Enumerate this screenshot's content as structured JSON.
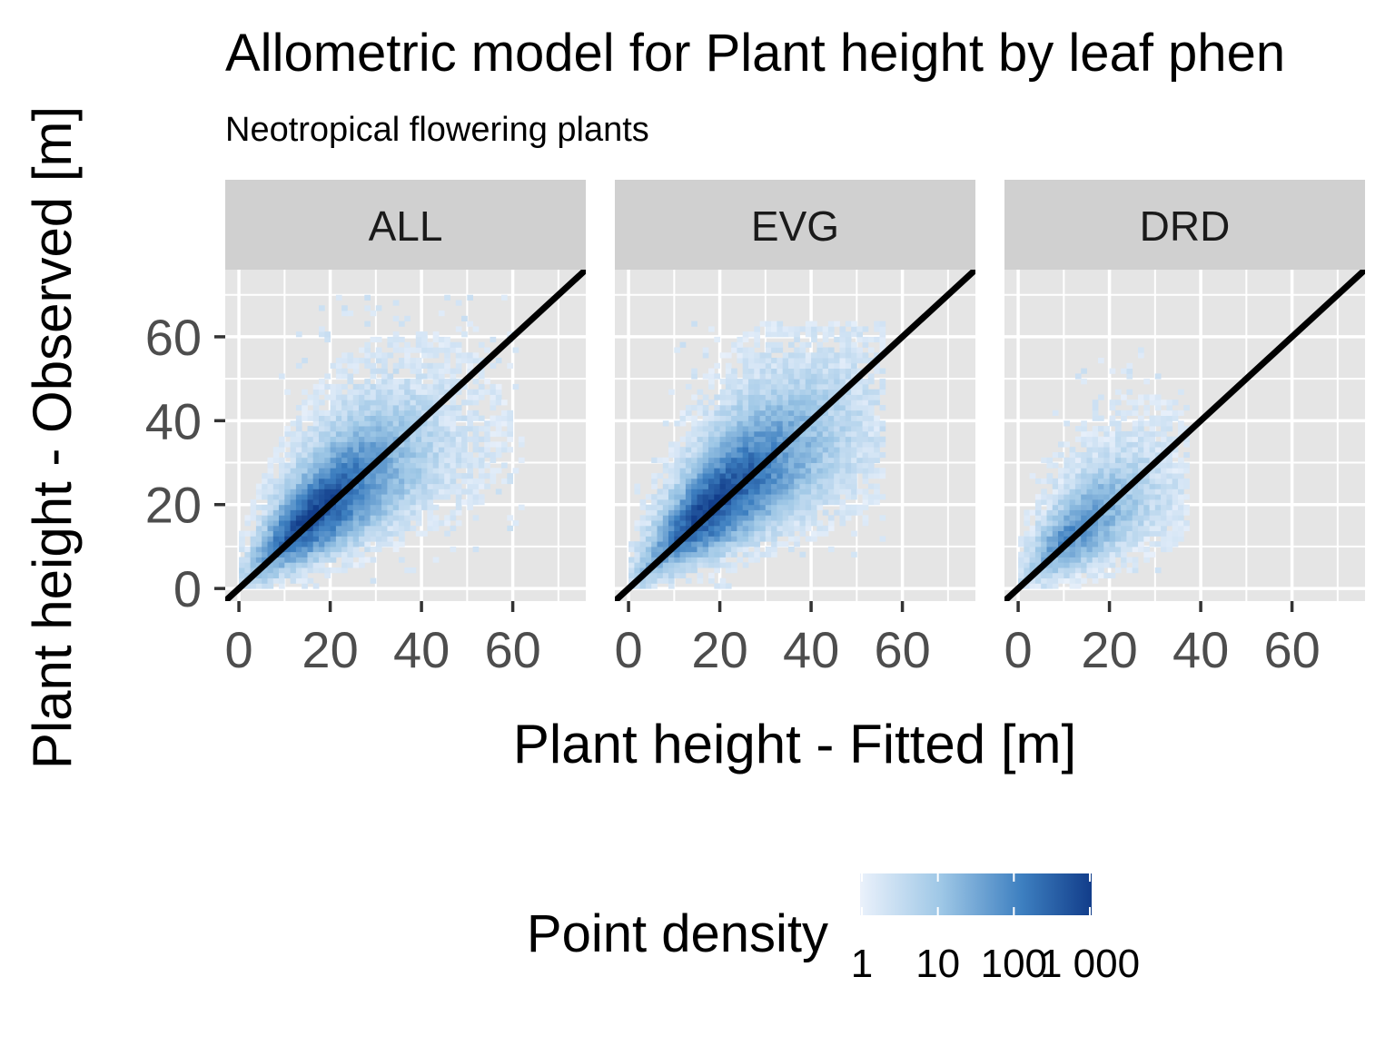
{
  "chart_data": {
    "type": "heatmap",
    "title": "Allometric model for Plant height by leaf phen",
    "subtitle": "Neotropical flowering plants",
    "xlabel": "Plant height - Fitted [m]",
    "ylabel": "Plant height - Observed [m]",
    "xlim": [
      -3,
      76
    ],
    "ylim": [
      -3,
      76
    ],
    "x_ticks": [
      0,
      20,
      40,
      60
    ],
    "y_ticks": [
      0,
      20,
      40,
      60
    ],
    "grid": true,
    "reference_line": {
      "type": "identity",
      "slope": 1,
      "intercept": 0,
      "color": "#000000"
    },
    "facets": [
      {
        "label": "ALL",
        "density_center": {
          "x": 16,
          "y": 16
        },
        "max_fitted": 62,
        "max_observed": 70,
        "peak_density": 1000
      },
      {
        "label": "EVG",
        "density_center": {
          "x": 18,
          "y": 18
        },
        "max_fitted": 56,
        "max_observed": 63,
        "peak_density": 1000
      },
      {
        "label": "DRD",
        "density_center": {
          "x": 12,
          "y": 13
        },
        "max_fitted": 37,
        "max_observed": 57,
        "peak_density": 100
      }
    ],
    "legend": {
      "title": "Point density",
      "position": "bottom",
      "scale": "log10",
      "labels": [
        "1",
        "10",
        "100",
        "1 000"
      ],
      "values": [
        1,
        10,
        100,
        1000
      ],
      "color_low": "#eaf1fb",
      "color_high": "#08306b"
    },
    "colors": {
      "panel_background": "#e5e5e5",
      "grid": "#ffffff",
      "strip_background": "#d0d0d0",
      "density_low": "#eaf1fb",
      "density_mid": "#4a8fc8",
      "density_high": "#0b4c92"
    }
  }
}
